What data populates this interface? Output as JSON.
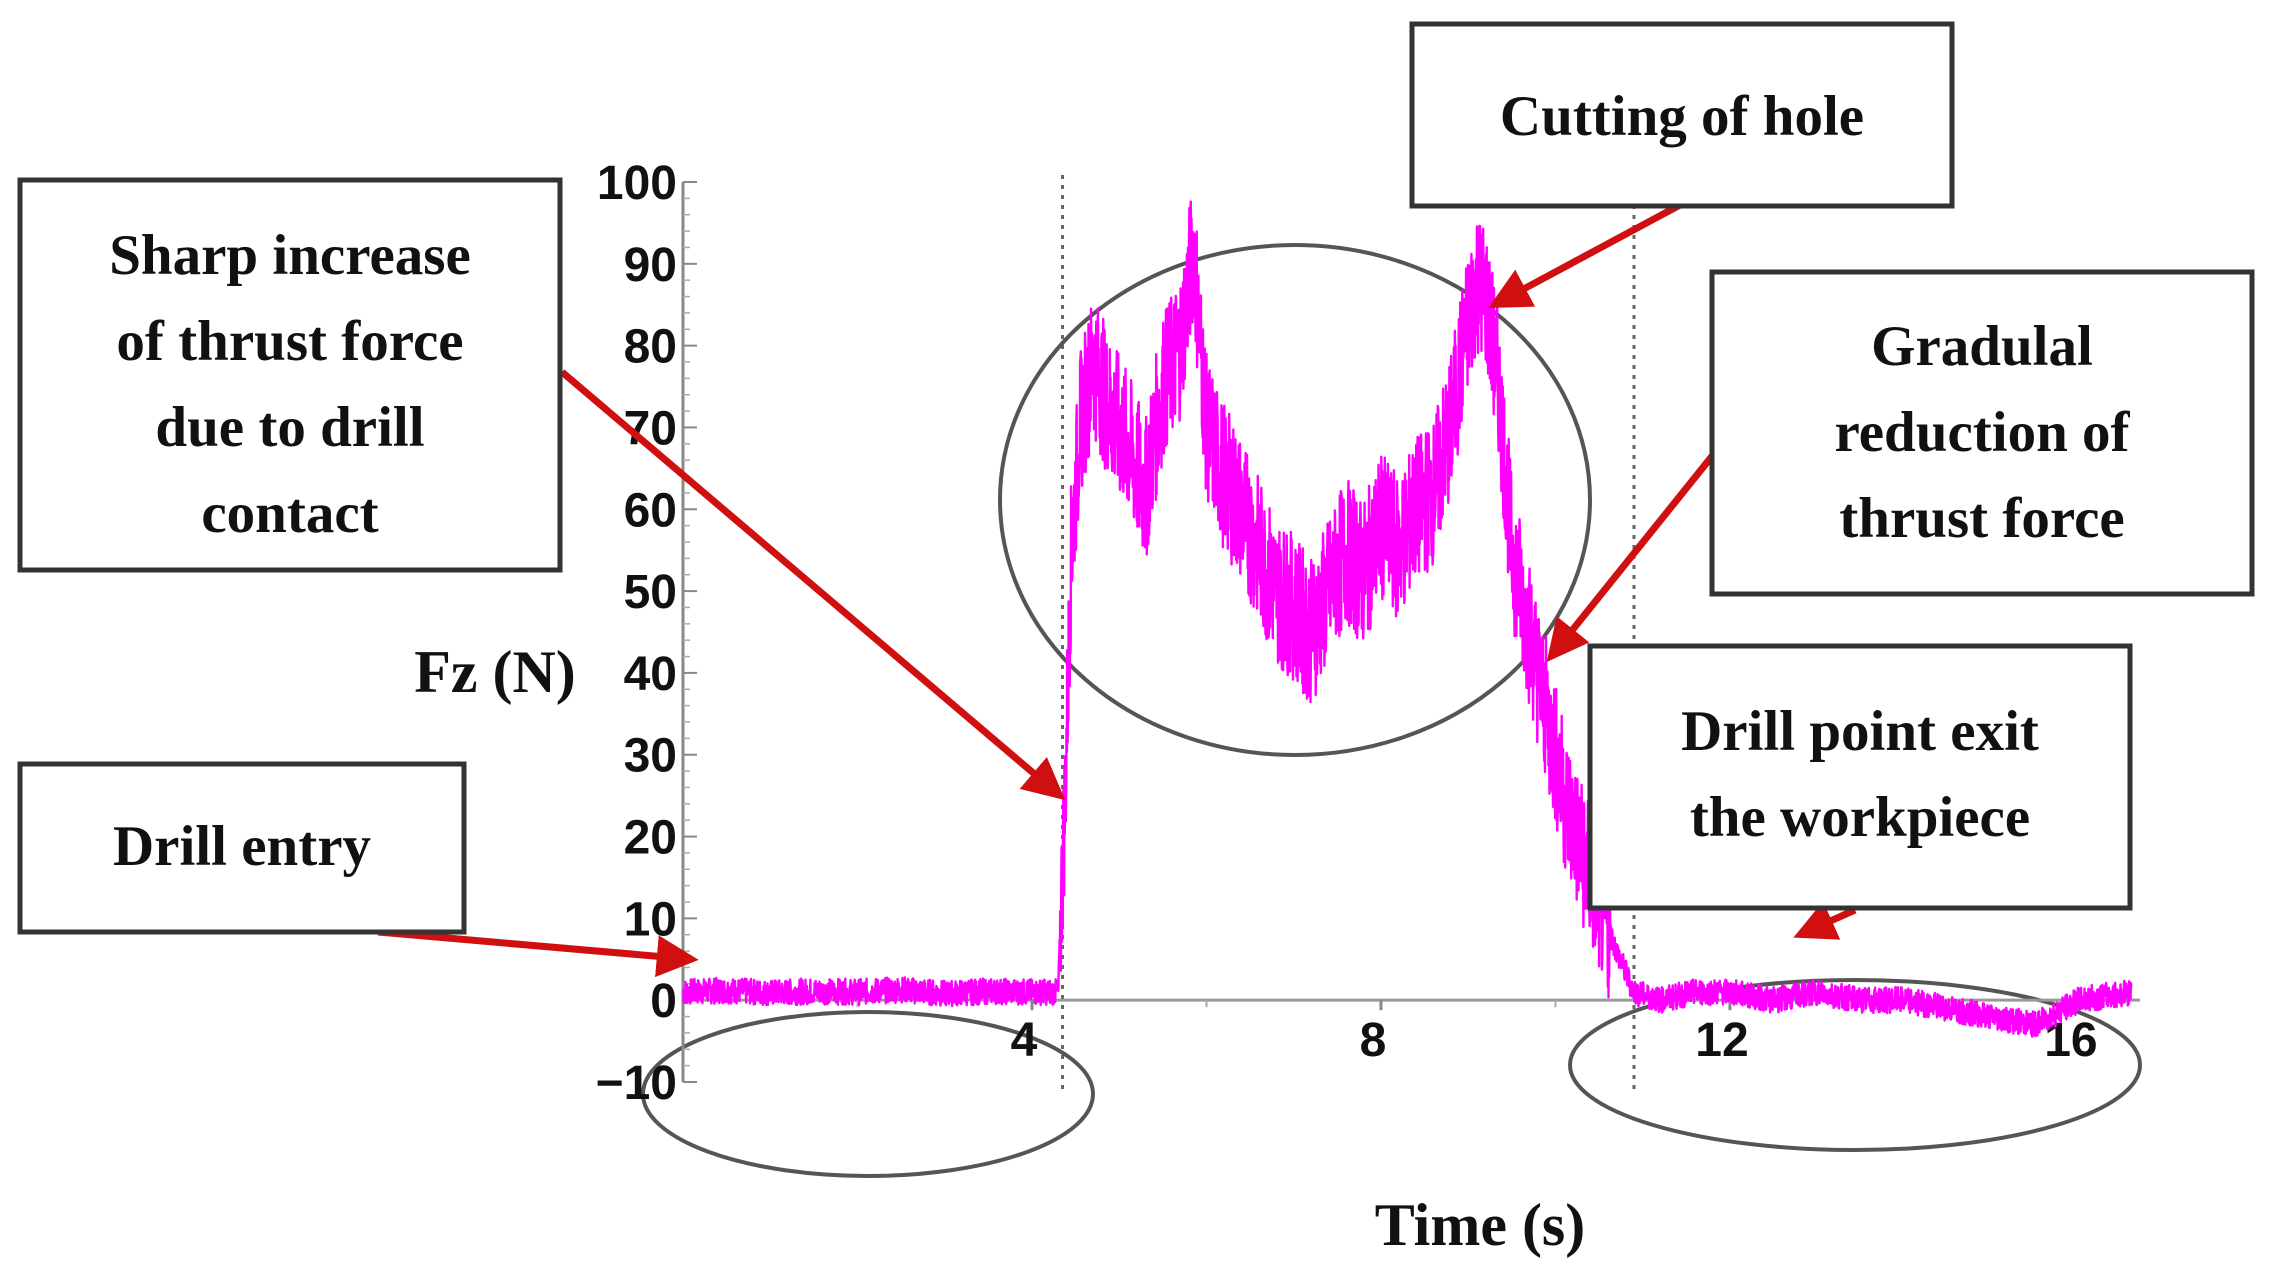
{
  "chart_data": {
    "type": "line",
    "xlabel": "Time (s)",
    "ylabel": "Fz (N)",
    "xlim": [
      0,
      16.7
    ],
    "ylim": [
      -10,
      100
    ],
    "x_ticks": [
      4,
      8,
      12,
      16
    ],
    "y_ticks": [
      -10,
      0,
      10,
      20,
      30,
      40,
      50,
      60,
      70,
      80,
      90,
      100
    ],
    "grid": false,
    "series_color": "#ff00ff",
    "arrow_color": "#d01010",
    "vertical_markers_x": [
      4.35,
      10.9
    ],
    "series": [
      {
        "x": [
          0,
          0.5,
          1,
          1.5,
          2,
          2.5,
          3,
          3.5,
          4,
          4.3,
          4.38,
          4.45,
          4.55,
          4.7,
          4.9,
          5.1,
          5.3,
          5.5,
          5.7,
          5.85,
          6.0,
          6.2,
          6.4,
          6.6,
          6.8,
          7.0,
          7.2,
          7.4,
          7.6,
          7.8,
          8.0,
          8.2,
          8.4,
          8.6,
          8.8,
          8.95,
          9.1,
          9.2,
          9.35,
          9.5,
          9.7,
          9.9,
          10.1,
          10.3,
          10.5,
          10.7,
          10.9,
          11.2,
          11.6,
          12,
          12.5,
          13,
          13.5,
          14,
          14.5,
          15,
          15.5,
          16,
          16.6
        ],
        "y": [
          1,
          1.2,
          0.9,
          1.1,
          1,
          1.3,
          0.8,
          1.1,
          1,
          1,
          25,
          55,
          70,
          78,
          72,
          68,
          62,
          75,
          80,
          92,
          70,
          64,
          60,
          55,
          50,
          48,
          45,
          50,
          55,
          52,
          58,
          55,
          60,
          62,
          70,
          80,
          88,
          86,
          75,
          55,
          45,
          35,
          25,
          18,
          12,
          6,
          1,
          0,
          1,
          1,
          0,
          1,
          0,
          0,
          -1,
          -2,
          -3,
          0,
          1
        ]
      }
    ],
    "annotations": [
      {
        "id": "sharp-increase",
        "lines": [
          "Sharp increase",
          "of thrust force",
          "due to drill",
          "contact"
        ],
        "target": [
          4.32,
          25
        ]
      },
      {
        "id": "cutting-hole",
        "lines": [
          "Cutting of hole"
        ],
        "target": [
          9.3,
          85
        ]
      },
      {
        "id": "gradual-reduction",
        "lines": [
          "Gradulal",
          "reduction of",
          "thrust force"
        ],
        "target": [
          9.95,
          42
        ]
      },
      {
        "id": "drill-entry",
        "lines": [
          "Drill entry"
        ],
        "target": [
          0.1,
          5
        ]
      },
      {
        "id": "drill-exit",
        "lines": [
          "Drill point exit",
          "the workpiece"
        ],
        "target": [
          12.8,
          8
        ]
      }
    ]
  }
}
